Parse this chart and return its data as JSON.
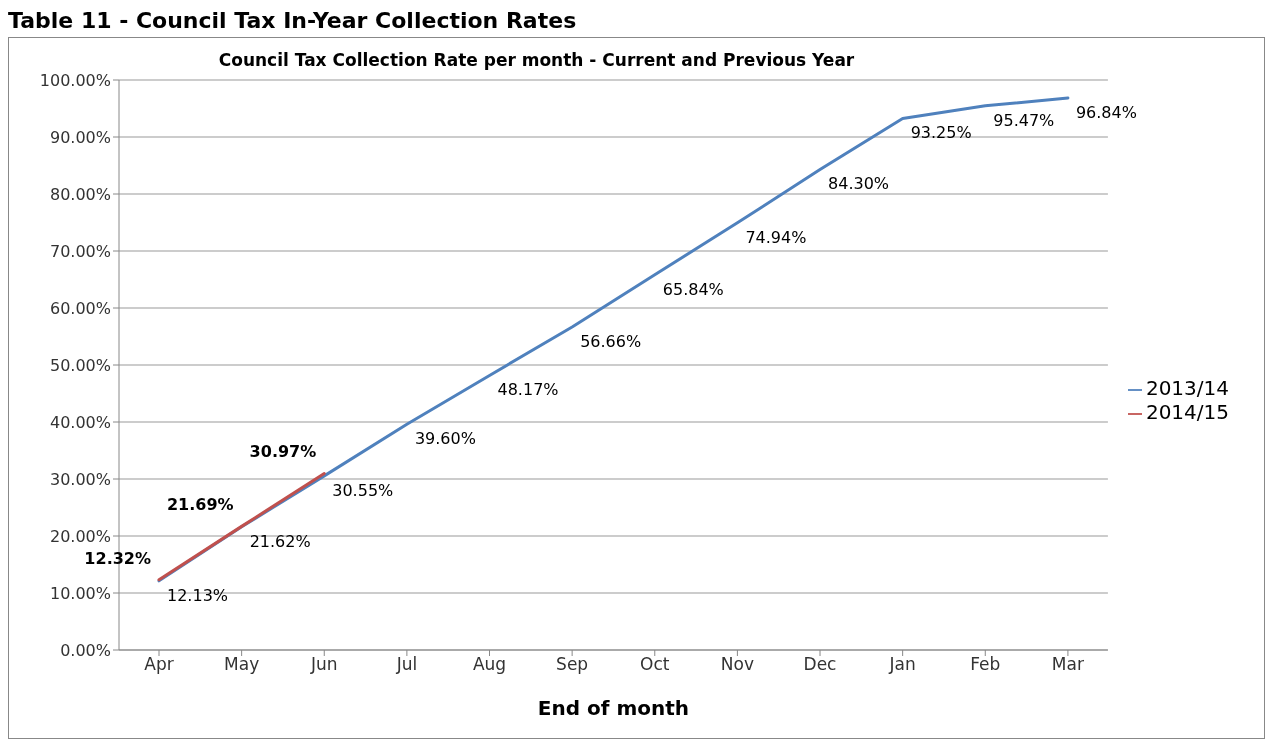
{
  "chart_data": {
    "type": "line",
    "title": "Council Tax Collection Rate per month - Current and Previous Year",
    "xlabel": "End of month",
    "annotations": [
      "Table 11 - Council Tax In-Year Collection Rates"
    ],
    "categories": [
      "Apr",
      "May",
      "Jun",
      "Jul",
      "Aug",
      "Sep",
      "Oct",
      "Nov",
      "Dec",
      "Jan",
      "Feb",
      "Mar"
    ],
    "series": [
      {
        "name": "2013/14",
        "color": "#4f81bd",
        "values": [
          12.13,
          21.62,
          30.55,
          39.6,
          48.17,
          56.66,
          65.84,
          74.94,
          84.3,
          93.25,
          95.47,
          96.84
        ],
        "value_labels": [
          "12.13%",
          "21.62%",
          "30.55%",
          "39.60%",
          "48.17%",
          "56.66%",
          "65.84%",
          "74.94%",
          "84.30%",
          "93.25%",
          "95.47%",
          "96.84%"
        ]
      },
      {
        "name": "2014/15",
        "color": "#c0504d",
        "values": [
          12.32,
          21.69,
          30.97,
          null,
          null,
          null,
          null,
          null,
          null,
          null,
          null,
          null
        ],
        "value_labels": [
          "12.32%",
          "21.69%",
          "30.97%",
          null,
          null,
          null,
          null,
          null,
          null,
          null,
          null,
          null
        ]
      }
    ],
    "ylim": [
      0,
      100
    ],
    "yticks": [
      {
        "value": 0,
        "label": "0.00%"
      },
      {
        "value": 10,
        "label": "10.00%"
      },
      {
        "value": 20,
        "label": "20.00%"
      },
      {
        "value": 30,
        "label": "30.00%"
      },
      {
        "value": 40,
        "label": "40.00%"
      },
      {
        "value": 50,
        "label": "50.00%"
      },
      {
        "value": 60,
        "label": "60.00%"
      },
      {
        "value": 70,
        "label": "70.00%"
      },
      {
        "value": 80,
        "label": "80.00%"
      },
      {
        "value": 90,
        "label": "90.00%"
      },
      {
        "value": 100,
        "label": "100.00%"
      }
    ],
    "grid": "y",
    "legend": "right",
    "marker": "none",
    "line_style": "solid"
  }
}
